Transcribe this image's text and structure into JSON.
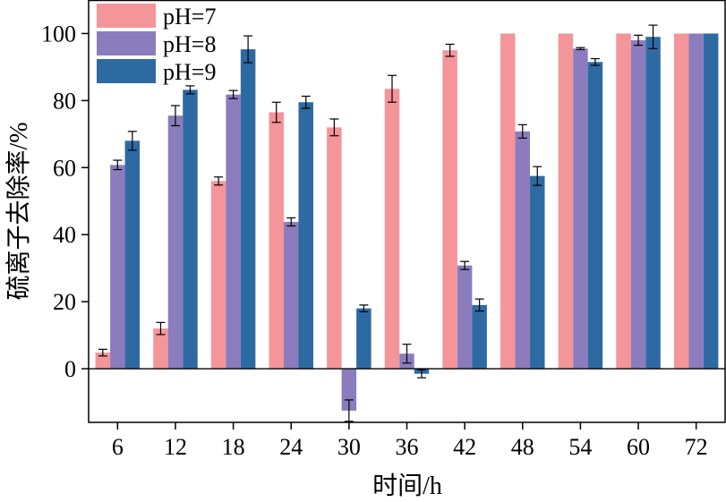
{
  "chart_data": {
    "type": "bar",
    "title": "",
    "xlabel": "时间/h",
    "ylabel": "硫离子去除率/%",
    "categories": [
      "6",
      "12",
      "18",
      "24",
      "30",
      "36",
      "42",
      "48",
      "54",
      "60",
      "72"
    ],
    "ylim": [
      -16,
      110
    ],
    "yticks": [
      0,
      20,
      40,
      60,
      80,
      100
    ],
    "legend_position": "top-left",
    "series": [
      {
        "name": "pH=7",
        "color": "#f4959a",
        "values": [
          4.8,
          12.0,
          56.0,
          76.5,
          72.0,
          83.5,
          95.0,
          100,
          100,
          100,
          100
        ],
        "errors": [
          1.0,
          1.8,
          1.2,
          3.0,
          2.5,
          4.0,
          1.8,
          0,
          0,
          0,
          0
        ]
      },
      {
        "name": "pH=8",
        "color": "#8b7dbd",
        "values": [
          60.8,
          75.5,
          81.8,
          43.8,
          -12.5,
          4.5,
          30.8,
          70.8,
          95.5,
          98.0,
          100
        ],
        "errors": [
          1.4,
          3.0,
          1.2,
          1.2,
          3.2,
          2.8,
          1.2,
          2.0,
          0.3,
          1.5,
          0
        ]
      },
      {
        "name": "pH=9",
        "color": "#2e6aa2",
        "values": [
          68.0,
          83.2,
          95.3,
          79.5,
          18.0,
          -1.5,
          19.0,
          57.5,
          91.5,
          99.0,
          100
        ],
        "errors": [
          2.8,
          1.2,
          4.0,
          1.8,
          1.0,
          1.2,
          1.8,
          2.8,
          1.0,
          3.5,
          0
        ]
      }
    ]
  }
}
